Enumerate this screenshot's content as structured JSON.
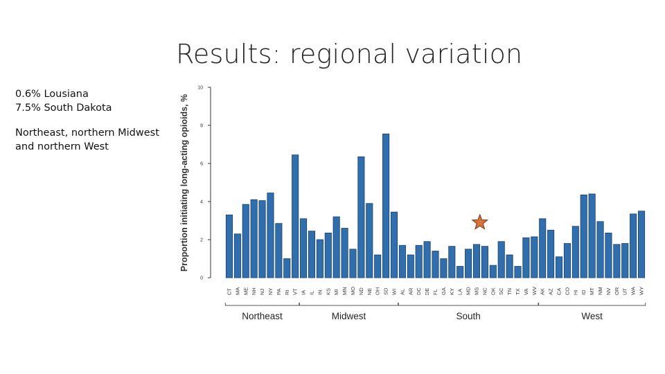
{
  "slide": {
    "title": "Results: regional variation",
    "notes": {
      "line1": "0.6% Lousiana",
      "line2": "7.5% South Dakota",
      "paragraph": "Northeast, northern Midwest and northern West"
    }
  },
  "colors": {
    "bar": "#2f6fb0",
    "bar_edge": "#1c3f66",
    "star": "#d9733a",
    "axis": "#333333"
  },
  "chart_data": {
    "type": "bar",
    "title": "",
    "xlabel": "",
    "ylabel": "Proportion initiating long-acting opioids, %",
    "ylim": [
      0,
      10
    ],
    "yticks": [
      "0",
      "2",
      "4",
      "6",
      "8",
      "10"
    ],
    "categories": [
      "CT",
      "MA",
      "ME",
      "NH",
      "NJ",
      "NY",
      "PA",
      "RI",
      "VT",
      "IA",
      "IL",
      "IN",
      "KS",
      "MI",
      "MN",
      "MO",
      "ND",
      "NE",
      "OH",
      "SD",
      "WI",
      "AL",
      "AR",
      "DC",
      "DE",
      "FL",
      "GA",
      "KY",
      "LA",
      "MD",
      "MS",
      "NC",
      "OK",
      "SC",
      "TN",
      "TX",
      "VA",
      "WV",
      "AK",
      "AZ",
      "CA",
      "CO",
      "HI",
      "ID",
      "MT",
      "NM",
      "NV",
      "OR",
      "UT",
      "WA",
      "WY"
    ],
    "values": [
      3.3,
      2.3,
      3.85,
      4.1,
      4.05,
      4.45,
      2.85,
      1.0,
      6.45,
      3.1,
      2.45,
      2.0,
      2.35,
      3.2,
      2.6,
      1.5,
      6.35,
      3.9,
      1.2,
      7.55,
      3.45,
      1.7,
      1.2,
      1.7,
      1.9,
      1.4,
      1.0,
      1.65,
      0.6,
      1.5,
      1.75,
      1.65,
      0.65,
      1.9,
      1.2,
      0.6,
      2.1,
      2.15,
      3.1,
      2.5,
      1.1,
      1.8,
      2.7,
      4.35,
      4.4,
      2.95,
      2.35,
      1.75,
      1.8,
      3.35,
      3.5
    ],
    "groups": [
      {
        "name": "Northeast",
        "start": 0,
        "end": 8
      },
      {
        "name": "Midwest",
        "start": 9,
        "end": 20
      },
      {
        "name": "South",
        "start": 21,
        "end": 37
      },
      {
        "name": "West",
        "start": 38,
        "end": 50
      }
    ],
    "annotations": [
      {
        "type": "star",
        "x": 30.9,
        "y": 2.9
      }
    ]
  }
}
